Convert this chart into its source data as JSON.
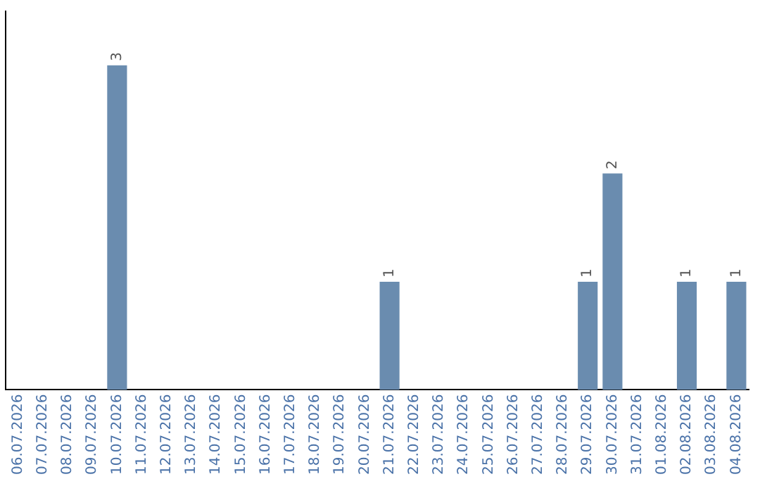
{
  "chart_data": {
    "type": "bar",
    "categories": [
      "06.07.2026",
      "07.07.2026",
      "08.07.2026",
      "09.07.2026",
      "10.07.2026",
      "11.07.2026",
      "12.07.2026",
      "13.07.2026",
      "14.07.2026",
      "15.07.2026",
      "16.07.2026",
      "17.07.2026",
      "18.07.2026",
      "19.07.2026",
      "20.07.2026",
      "21.07.2026",
      "22.07.2026",
      "23.07.2026",
      "24.07.2026",
      "25.07.2026",
      "26.07.2026",
      "27.07.2026",
      "28.07.2026",
      "29.07.2026",
      "30.07.2026",
      "31.07.2026",
      "01.08.2026",
      "02.08.2026",
      "03.08.2026",
      "04.08.2026"
    ],
    "values": [
      0,
      0,
      0,
      0,
      3,
      0,
      0,
      0,
      0,
      0,
      0,
      0,
      0,
      0,
      0,
      1,
      0,
      0,
      0,
      0,
      0,
      0,
      0,
      1,
      2,
      0,
      0,
      1,
      0,
      1
    ],
    "value_labels": [
      null,
      null,
      null,
      null,
      "3",
      null,
      null,
      null,
      null,
      null,
      null,
      null,
      null,
      null,
      null,
      "1",
      null,
      null,
      null,
      null,
      null,
      null,
      null,
      "1",
      "2",
      null,
      null,
      "1",
      null,
      "1"
    ],
    "color": "#6a8caf",
    "grid": false,
    "legend": false,
    "tick_labels": "x"
  }
}
